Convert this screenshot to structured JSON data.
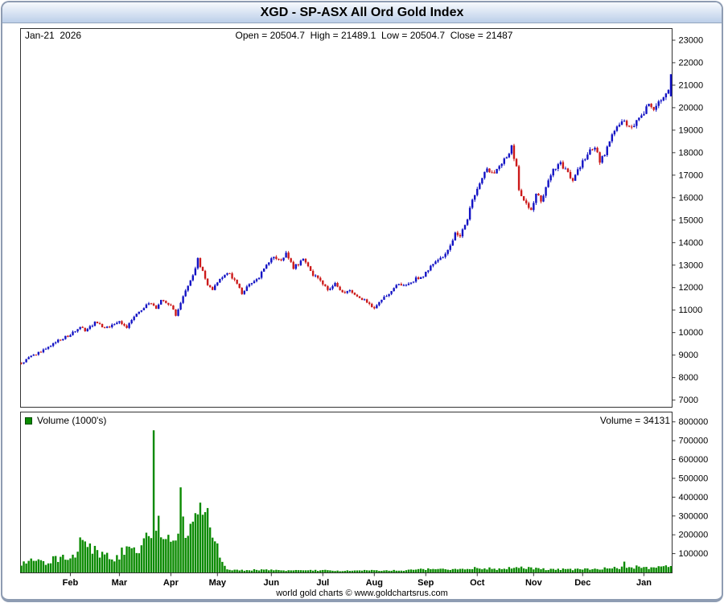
{
  "title": "XGD - SP-ASX All Ord Gold Index",
  "header": {
    "date_label": "Jan-21  2026",
    "ohlc_label": "Open = 20504.7  High = 21489.1  Low = 20504.7  Close = 21487"
  },
  "volume_panel": {
    "legend": "Volume (1000's)",
    "readout": "Volume = 34131"
  },
  "footer": "world gold charts © www.goldchartsrus.com",
  "colors": {
    "up": "#1212c4",
    "down": "#cc1a1a",
    "volume": "#0a8a00",
    "border": "#333333",
    "frame": "#8e9cb2",
    "titlebar_top": "#f6f9fd",
    "titlebar_bottom": "#bccfe9",
    "text": "#000000"
  },
  "chart_data": {
    "type": "candlestick+volume",
    "title": "XGD - SP-ASX All Ord Gold Index",
    "n_days": 266,
    "last_candle": {
      "open": 20504.7,
      "high": 21489.1,
      "low": 20504.7,
      "close": 21487
    },
    "last_volume": 34131,
    "price_axis": {
      "min": 6700,
      "max": 23500,
      "tick_step": 1000,
      "ticks": [
        7000,
        8000,
        9000,
        10000,
        11000,
        12000,
        13000,
        14000,
        15000,
        16000,
        17000,
        18000,
        19000,
        20000,
        21000,
        22000,
        23000
      ]
    },
    "volume_axis": {
      "min": 0,
      "max": 850000,
      "ticks": [
        100000,
        200000,
        300000,
        400000,
        500000,
        600000,
        700000,
        800000
      ]
    },
    "x_axis": {
      "month_labels": [
        {
          "label": "Feb",
          "day": 20
        },
        {
          "label": "Mar",
          "day": 40
        },
        {
          "label": "Apr",
          "day": 61
        },
        {
          "label": "May",
          "day": 80
        },
        {
          "label": "Jun",
          "day": 102
        },
        {
          "label": "Jul",
          "day": 123
        },
        {
          "label": "Aug",
          "day": 144
        },
        {
          "label": "Sep",
          "day": 165
        },
        {
          "label": "Oct",
          "day": 186
        },
        {
          "label": "Nov",
          "day": 209
        },
        {
          "label": "Dec",
          "day": 229
        },
        {
          "label": "Jan",
          "day": 254
        }
      ]
    },
    "price_anchors": [
      [
        0,
        8650
      ],
      [
        5,
        9000
      ],
      [
        10,
        9250
      ],
      [
        15,
        9650
      ],
      [
        20,
        9900
      ],
      [
        24,
        10300
      ],
      [
        26,
        10100
      ],
      [
        30,
        10450
      ],
      [
        34,
        10200
      ],
      [
        40,
        10450
      ],
      [
        43,
        10250
      ],
      [
        46,
        10700
      ],
      [
        49,
        11000
      ],
      [
        52,
        11300
      ],
      [
        55,
        11100
      ],
      [
        57,
        11400
      ],
      [
        61,
        11200
      ],
      [
        63,
        10800
      ],
      [
        66,
        11600
      ],
      [
        69,
        12300
      ],
      [
        72,
        13250
      ],
      [
        74,
        12700
      ],
      [
        76,
        12100
      ],
      [
        78,
        11950
      ],
      [
        80,
        12300
      ],
      [
        84,
        12700
      ],
      [
        87,
        12300
      ],
      [
        90,
        11750
      ],
      [
        93,
        12100
      ],
      [
        97,
        12500
      ],
      [
        100,
        13000
      ],
      [
        103,
        13350
      ],
      [
        106,
        13200
      ],
      [
        108,
        13500
      ],
      [
        111,
        12900
      ],
      [
        115,
        13250
      ],
      [
        118,
        12700
      ],
      [
        121,
        12400
      ],
      [
        125,
        11950
      ],
      [
        128,
        12150
      ],
      [
        131,
        11750
      ],
      [
        134,
        11900
      ],
      [
        138,
        11600
      ],
      [
        141,
        11350
      ],
      [
        144,
        11050
      ],
      [
        148,
        11550
      ],
      [
        151,
        11900
      ],
      [
        154,
        12200
      ],
      [
        157,
        12100
      ],
      [
        161,
        12400
      ],
      [
        164,
        12500
      ],
      [
        167,
        13000
      ],
      [
        171,
        13300
      ],
      [
        174,
        13700
      ],
      [
        177,
        14400
      ],
      [
        179,
        14300
      ],
      [
        182,
        15100
      ],
      [
        185,
        16200
      ],
      [
        188,
        16900
      ],
      [
        190,
        17200
      ],
      [
        193,
        17000
      ],
      [
        195,
        17400
      ],
      [
        198,
        17800
      ],
      [
        200,
        18300
      ],
      [
        202,
        17300
      ],
      [
        203,
        16300
      ],
      [
        206,
        15700
      ],
      [
        208,
        15400
      ],
      [
        210,
        16200
      ],
      [
        212,
        15900
      ],
      [
        215,
        16700
      ],
      [
        217,
        17200
      ],
      [
        220,
        17500
      ],
      [
        222,
        17200
      ],
      [
        225,
        16800
      ],
      [
        227,
        17300
      ],
      [
        230,
        17700
      ],
      [
        232,
        18200
      ],
      [
        234,
        18300
      ],
      [
        236,
        17600
      ],
      [
        238,
        17900
      ],
      [
        241,
        18700
      ],
      [
        244,
        19300
      ],
      [
        246,
        19500
      ],
      [
        248,
        19100
      ],
      [
        251,
        19400
      ],
      [
        253,
        19700
      ],
      [
        256,
        20100
      ],
      [
        258,
        20000
      ],
      [
        261,
        20400
      ],
      [
        263,
        20600
      ],
      [
        265,
        21100
      ]
    ],
    "volume_anchors": [
      [
        0,
        50000
      ],
      [
        5,
        65000
      ],
      [
        10,
        55000
      ],
      [
        15,
        75000
      ],
      [
        20,
        85000
      ],
      [
        23,
        110000
      ],
      [
        24,
        250000
      ],
      [
        25,
        140000
      ],
      [
        26,
        150000
      ],
      [
        30,
        120000
      ],
      [
        34,
        100000
      ],
      [
        38,
        80000
      ],
      [
        40,
        95000
      ],
      [
        43,
        120000
      ],
      [
        46,
        110000
      ],
      [
        49,
        150000
      ],
      [
        52,
        170000
      ],
      [
        53,
        190000
      ],
      [
        54,
        680000
      ],
      [
        55,
        230000
      ],
      [
        56,
        250000
      ],
      [
        58,
        200000
      ],
      [
        60,
        230000
      ],
      [
        62,
        180000
      ],
      [
        64,
        230000
      ],
      [
        65,
        430000
      ],
      [
        66,
        250000
      ],
      [
        69,
        220000
      ],
      [
        71,
        260000
      ],
      [
        72,
        260000
      ],
      [
        73,
        480000
      ],
      [
        74,
        280000
      ],
      [
        75,
        300000
      ],
      [
        77,
        250000
      ],
      [
        79,
        160000
      ],
      [
        81,
        90000
      ],
      [
        83,
        30000
      ],
      [
        85,
        15000
      ],
      [
        90,
        12000
      ],
      [
        100,
        15000
      ],
      [
        110,
        10000
      ],
      [
        120,
        12000
      ],
      [
        130,
        9000
      ],
      [
        140,
        11000
      ],
      [
        150,
        10000
      ],
      [
        160,
        13000
      ],
      [
        165,
        18000
      ],
      [
        170,
        15000
      ],
      [
        180,
        20000
      ],
      [
        186,
        25000
      ],
      [
        190,
        22000
      ],
      [
        195,
        18000
      ],
      [
        200,
        28000
      ],
      [
        205,
        24000
      ],
      [
        210,
        20000
      ],
      [
        215,
        16000
      ],
      [
        220,
        18000
      ],
      [
        225,
        15000
      ],
      [
        230,
        18000
      ],
      [
        235,
        20000
      ],
      [
        240,
        22000
      ],
      [
        245,
        25000
      ],
      [
        246,
        55000
      ],
      [
        247,
        25000
      ],
      [
        252,
        30000
      ],
      [
        256,
        25000
      ],
      [
        260,
        28000
      ],
      [
        263,
        30000
      ],
      [
        265,
        34131
      ]
    ]
  }
}
